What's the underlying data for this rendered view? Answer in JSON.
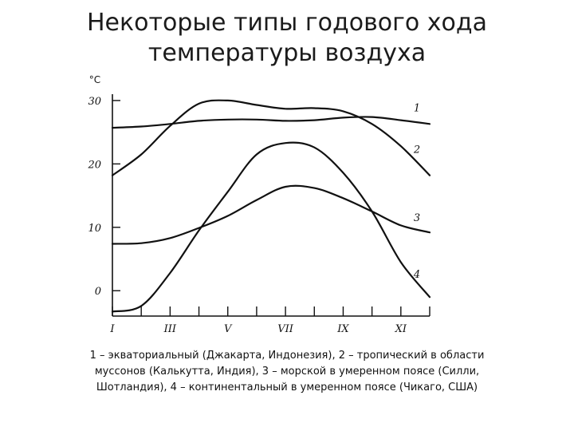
{
  "title": {
    "line1": "Некоторые типы годового хода",
    "line2": "температуры воздуха"
  },
  "caption": {
    "line1": "1 – экваториальный (Джакарта, Индонезия), 2 – тропический в области",
    "line2": "муссонов (Калькутта, Индия), 3 – морской в умеренном поясе (Силли,",
    "line3": "Шотландия), 4 – континентальный в умеренном поясе (Чикаго, США)"
  },
  "chart_data": {
    "type": "line",
    "ylabel": "°C",
    "ylim": [
      -4,
      31
    ],
    "yticks": [
      0,
      10,
      20,
      30
    ],
    "xlim": [
      1,
      12
    ],
    "xticks": [
      {
        "x": 1,
        "label": "I"
      },
      {
        "x": 3,
        "label": "III"
      },
      {
        "x": 5,
        "label": "V"
      },
      {
        "x": 7,
        "label": "VII"
      },
      {
        "x": 9,
        "label": "IX"
      },
      {
        "x": 11,
        "label": "XI"
      }
    ],
    "x": [
      1,
      2,
      3,
      4,
      5,
      6,
      7,
      8,
      9,
      10,
      11,
      12
    ],
    "series": [
      {
        "name": "1",
        "values": [
          25.7,
          25.9,
          26.3,
          26.8,
          27.0,
          27.0,
          26.8,
          26.9,
          27.3,
          27.4,
          26.9,
          26.3
        ]
      },
      {
        "name": "2",
        "values": [
          18.2,
          21.5,
          26.0,
          29.5,
          30.0,
          29.3,
          28.7,
          28.8,
          28.3,
          26.3,
          22.8,
          18.2
        ]
      },
      {
        "name": "3",
        "values": [
          7.4,
          7.5,
          8.3,
          9.9,
          11.8,
          14.3,
          16.4,
          16.2,
          14.6,
          12.5,
          10.3,
          9.2
        ]
      },
      {
        "name": "4",
        "values": [
          -3.3,
          -2.4,
          2.8,
          9.5,
          15.6,
          21.5,
          23.3,
          22.6,
          18.6,
          12.5,
          4.5,
          -1.0
        ]
      }
    ]
  }
}
